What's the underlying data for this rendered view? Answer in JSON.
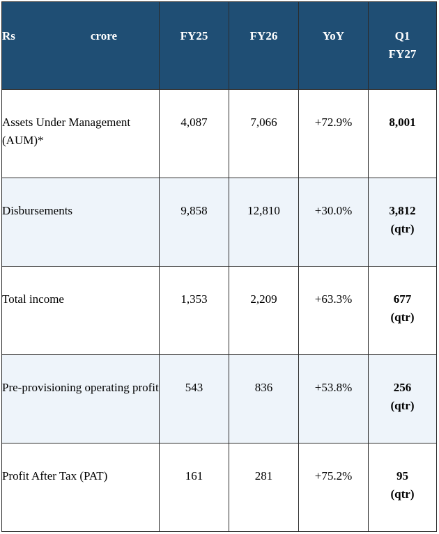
{
  "header": {
    "unit_left": "Rs",
    "unit_right": "crore",
    "col1": "FY25",
    "col2": "FY26",
    "col3": "YoY",
    "col4_line1": "Q1",
    "col4_line2": "FY27"
  },
  "rows": [
    {
      "label": "Assets Under Management (AUM)*",
      "fy25": "4,087",
      "fy26": "7,066",
      "yoy": "+72.9%",
      "q1": "8,001",
      "q1_note": ""
    },
    {
      "label": "Disbursements",
      "fy25": "9,858",
      "fy26": "12,810",
      "yoy": "+30.0%",
      "q1": "3,812",
      "q1_note": "(qtr)"
    },
    {
      "label": "Total income",
      "fy25": "1,353",
      "fy26": "2,209",
      "yoy": "+63.3%",
      "q1": "677",
      "q1_note": "(qtr)"
    },
    {
      "label": "Pre-provisioning operating profit",
      "fy25": "543",
      "fy26": "836",
      "yoy": "+53.8%",
      "q1": "256",
      "q1_note": "(qtr)"
    },
    {
      "label": "Profit After Tax (PAT)",
      "fy25": "161",
      "fy26": "281",
      "yoy": "+75.2%",
      "q1": "95",
      "q1_note": "(qtr)"
    }
  ]
}
